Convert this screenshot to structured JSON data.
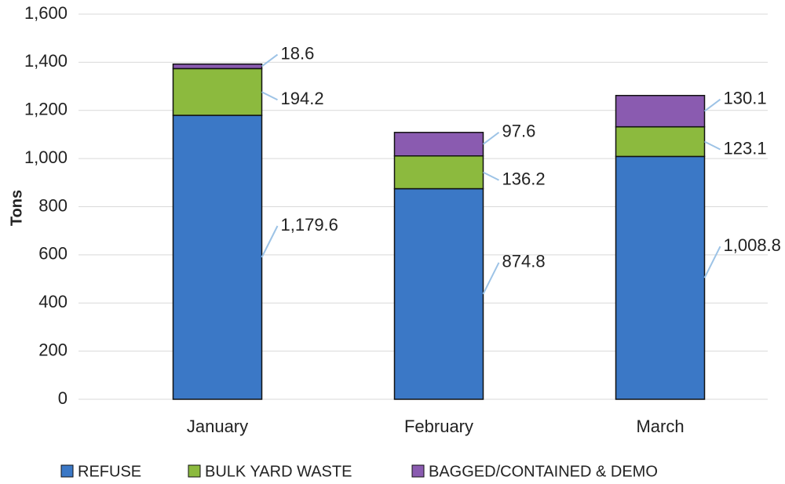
{
  "chart_data": {
    "type": "stacked_bar",
    "y_label": "Tons",
    "categories": [
      "January",
      "February",
      "March"
    ],
    "series": [
      {
        "name": "REFUSE",
        "color": "#3b78c6",
        "values": [
          1179.6,
          874.8,
          1008.8
        ],
        "value_labels": [
          "1,179.6",
          "874.8",
          "1,008.8"
        ]
      },
      {
        "name": "BULK YARD WASTE",
        "color": "#8cba3e",
        "values": [
          194.2,
          136.2,
          123.1
        ]
      },
      {
        "name": "BAGGED/CONTAINED & DEMO",
        "color": "#8a5bb0",
        "values": [
          18.6,
          97.6,
          130.1
        ]
      }
    ],
    "ylim": [
      0,
      1600
    ],
    "yticks": [
      0,
      200,
      400,
      600,
      800,
      {
        "value": 1000,
        "label": "1,000"
      },
      {
        "value": 1200,
        "label": "1,200"
      },
      {
        "value": 1400,
        "label": "1,400"
      },
      {
        "value": 1600,
        "label": "1,600"
      }
    ],
    "grid": true,
    "legend": "bottom"
  }
}
